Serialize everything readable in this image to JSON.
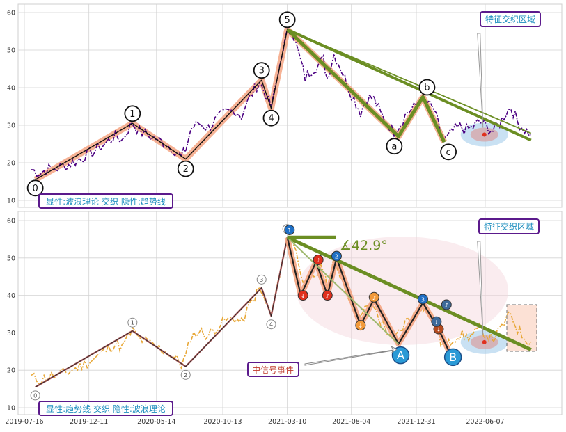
{
  "colors": {
    "top_price": "#4b0082",
    "bottom_price": "#e8a838",
    "wave_glow": "#f4a582",
    "trend": "#6b8e23",
    "grid": "#d3d3d3",
    "label_border": "#5b1a8c",
    "label_text": "#1f8fbf",
    "red": "#e0301e",
    "blue_marker": "#1f6fc4",
    "orange_marker": "#f29a3a",
    "ellipse": "#f5d5dc",
    "hotspot_blue": "#9cc8ea"
  },
  "chart_data": [
    {
      "type": "line",
      "panel": "top",
      "ylim": [
        8,
        62
      ],
      "yticks": [
        10,
        20,
        30,
        40,
        50,
        60
      ],
      "grid": true,
      "series": [
        {
          "points": [
            [
              "2019-08-01",
              18.2
            ],
            [
              "2019-08-20",
              17.4
            ],
            [
              "2019-09-10",
              18.3
            ],
            [
              "2019-09-30",
              18.6
            ],
            [
              "2019-10-20",
              19.3
            ],
            [
              "2019-11-10",
              20.4
            ],
            [
              "2019-12-01",
              21.7
            ],
            [
              "2019-12-25",
              23.2
            ],
            [
              "2020-01-20",
              25.4
            ],
            [
              "2020-02-10",
              27.1
            ],
            [
              "2020-02-25",
              26.0
            ],
            [
              "2020-03-10",
              29.0
            ],
            [
              "2020-03-20",
              30.6
            ],
            [
              "2020-04-05",
              28.4
            ],
            [
              "2020-04-25",
              27.3
            ],
            [
              "2020-05-15",
              26.2
            ],
            [
              "2020-06-05",
              25.0
            ],
            [
              "2020-06-25",
              23.4
            ],
            [
              "2020-07-10",
              21.5
            ],
            [
              "2020-07-20",
              23.5
            ],
            [
              "2020-08-01",
              29.0
            ],
            [
              "2020-08-20",
              30.5
            ],
            [
              "2020-09-10",
              29.3
            ],
            [
              "2020-10-01",
              31.8
            ],
            [
              "2020-10-20",
              33.2
            ],
            [
              "2020-11-10",
              34.0
            ],
            [
              "2020-11-25",
              32.5
            ],
            [
              "2020-12-15",
              37.5
            ],
            [
              "2021-01-05",
              41.6
            ],
            [
              "2021-01-20",
              38.0
            ],
            [
              "2021-02-01",
              34.8
            ],
            [
              "2021-02-15",
              42.0
            ],
            [
              "2021-02-28",
              50.5
            ],
            [
              "2021-03-10",
              54.2
            ],
            [
              "2021-03-20",
              56.0
            ],
            [
              "2021-04-05",
              49.0
            ],
            [
              "2021-04-20",
              42.5
            ],
            [
              "2021-05-05",
              44.8
            ],
            [
              "2021-05-20",
              46.0
            ],
            [
              "2021-06-01",
              47.5
            ],
            [
              "2021-06-10",
              42.5
            ],
            [
              "2021-06-25",
              49.0
            ],
            [
              "2021-07-10",
              45.5
            ],
            [
              "2021-07-25",
              41.0
            ],
            [
              "2021-08-10",
              37.0
            ],
            [
              "2021-08-25",
              33.5
            ],
            [
              "2021-09-10",
              37.5
            ],
            [
              "2021-09-25",
              37.0
            ],
            [
              "2021-10-10",
              33.0
            ],
            [
              "2021-10-25",
              30.5
            ],
            [
              "2021-11-10",
              28.4
            ],
            [
              "2021-11-25",
              30.5
            ],
            [
              "2021-12-10",
              33.5
            ],
            [
              "2021-12-25",
              34.5
            ],
            [
              "2022-01-10",
              37.2
            ],
            [
              "2022-01-25",
              36.0
            ],
            [
              "2022-02-10",
              34.0
            ],
            [
              "2022-02-25",
              27.5
            ],
            [
              "2022-03-10",
              26.2
            ],
            [
              "2022-03-25",
              28.5
            ],
            [
              "2022-04-10",
              29.5
            ],
            [
              "2022-04-25",
              28.8
            ],
            [
              "2022-05-10",
              29.5
            ],
            [
              "2022-05-25",
              31.0
            ],
            [
              "2022-06-10",
              29.5
            ],
            [
              "2022-06-25",
              28.5
            ],
            [
              "2022-07-10",
              30.5
            ],
            [
              "2022-07-25",
              33.5
            ],
            [
              "2022-08-05",
              34.8
            ],
            [
              "2022-08-20",
              31.0
            ],
            [
              "2022-09-05",
              28.8
            ],
            [
              "2022-09-20",
              27.6
            ]
          ]
        }
      ],
      "waves": {
        "points": [
          [
            "2019-08-10",
            15.5
          ],
          [
            "2020-03-20",
            30.5
          ],
          [
            "2020-07-20",
            21.0
          ],
          [
            "2021-01-10",
            42.0
          ],
          [
            "2021-02-01",
            34.5
          ],
          [
            "2021-03-10",
            55.5
          ],
          [
            "2021-11-20",
            27.0
          ],
          [
            "2022-01-15",
            37.5
          ],
          [
            "2022-03-05",
            25.5
          ]
        ],
        "labels": [
          "0",
          "1",
          "2",
          "3",
          "4",
          "5",
          "a",
          "b",
          "c"
        ]
      },
      "trendlines": [
        {
          "from": [
            "2021-03-10",
            55.5
          ],
          "to": [
            "2022-09-20",
            26.0
          ],
          "weight": "thin"
        },
        {
          "from": [
            "2021-03-10",
            55.5
          ],
          "to": [
            "2022-09-20",
            26.0
          ],
          "weight": "thick"
        }
      ],
      "annotation_box": "特征交织区域",
      "legend_box": "显性:波浪理论 交织 隐性:趋势线"
    },
    {
      "type": "line",
      "panel": "bottom",
      "ylim": [
        8,
        62
      ],
      "yticks": [
        10,
        20,
        30,
        40,
        50,
        60
      ],
      "grid": true,
      "x_tick_labels": [
        "2019-07-16",
        "2019-12-11",
        "2020-05-14",
        "2020-10-13",
        "2021-03-10",
        "2021-08-04",
        "2021-12-31",
        "2022-06-07"
      ],
      "angle_label": "∡42.9°",
      "signal_label": "中信号事件",
      "wave_small_labels": [
        "0",
        "1",
        "2",
        "3",
        "4",
        "5"
      ],
      "AB_labels": [
        "A",
        "B"
      ],
      "annotation_box": "特征交织区域",
      "legend_box": "显性:趋势线 交织 隐性:波浪理论"
    }
  ]
}
